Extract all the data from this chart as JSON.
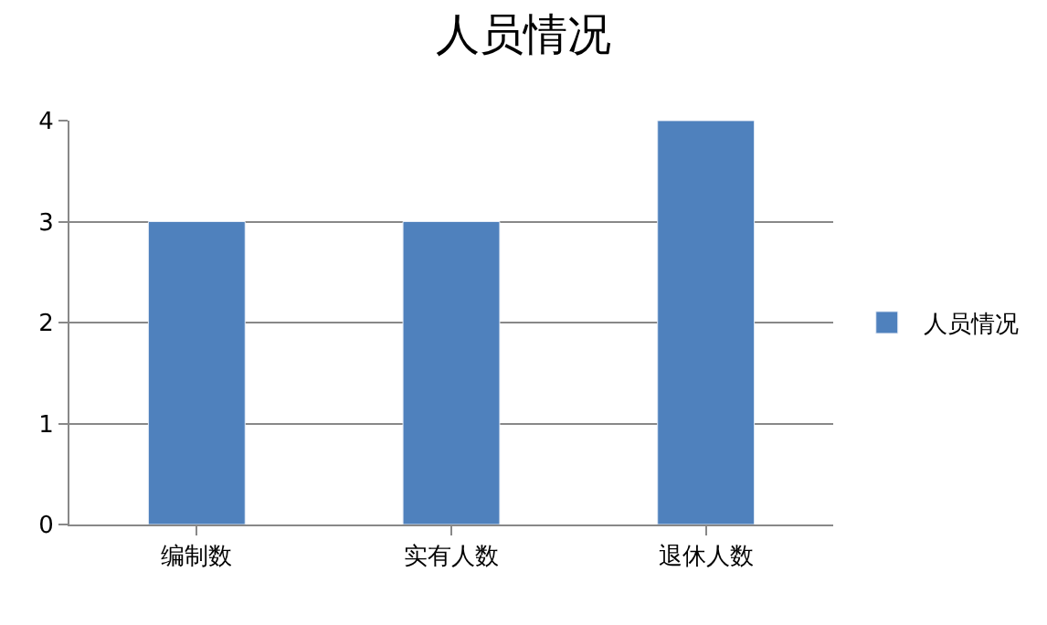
{
  "chart_data": {
    "type": "bar",
    "title": "人员情况",
    "categories": [
      "编制数",
      "实有人数",
      "退休人数"
    ],
    "series": [
      {
        "name": "人员情况",
        "color": "#4f81bd",
        "values": [
          3,
          3,
          4
        ]
      }
    ],
    "ylim": [
      0,
      4
    ],
    "yticks": [
      0,
      1,
      2,
      3,
      4
    ],
    "grid": "y",
    "legend": "right"
  }
}
